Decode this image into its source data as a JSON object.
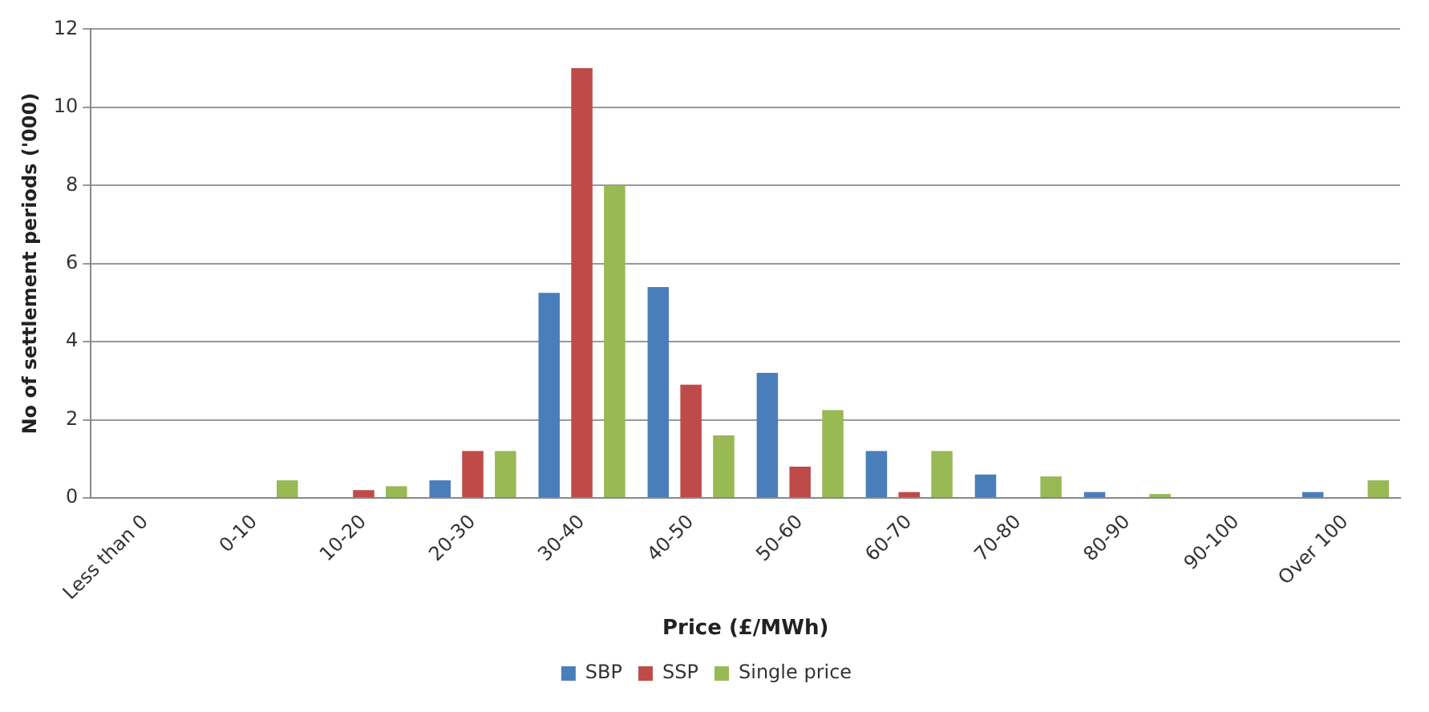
{
  "chart_data": {
    "type": "bar",
    "xlabel": "Price (£/MWh)",
    "ylabel": "No of settlement periods ('000)",
    "categories": [
      "Less than 0",
      "0-10",
      "10-20",
      "20-30",
      "30-40",
      "40-50",
      "50-60",
      "60-70",
      "70-80",
      "80-90",
      "90-100",
      "Over 100"
    ],
    "series": [
      {
        "name": "SBP",
        "color": "#4a7ebb",
        "values": [
          0,
          0,
          0,
          0.45,
          5.25,
          5.4,
          3.2,
          1.2,
          0.6,
          0.15,
          0,
          0.15
        ]
      },
      {
        "name": "SSP",
        "color": "#be4b48",
        "values": [
          0,
          0,
          0.2,
          1.2,
          11,
          2.9,
          0.8,
          0.15,
          0,
          0,
          0,
          0
        ]
      },
      {
        "name": "Single price",
        "color": "#98b954",
        "values": [
          0,
          0.45,
          0.3,
          1.2,
          8,
          1.6,
          2.25,
          1.2,
          0.55,
          0.1,
          0,
          0.45
        ]
      }
    ],
    "ylim": [
      0,
      12
    ],
    "yticks": [
      0,
      2,
      4,
      6,
      8,
      10,
      12
    ],
    "grid": "y",
    "legend": "bottom"
  }
}
